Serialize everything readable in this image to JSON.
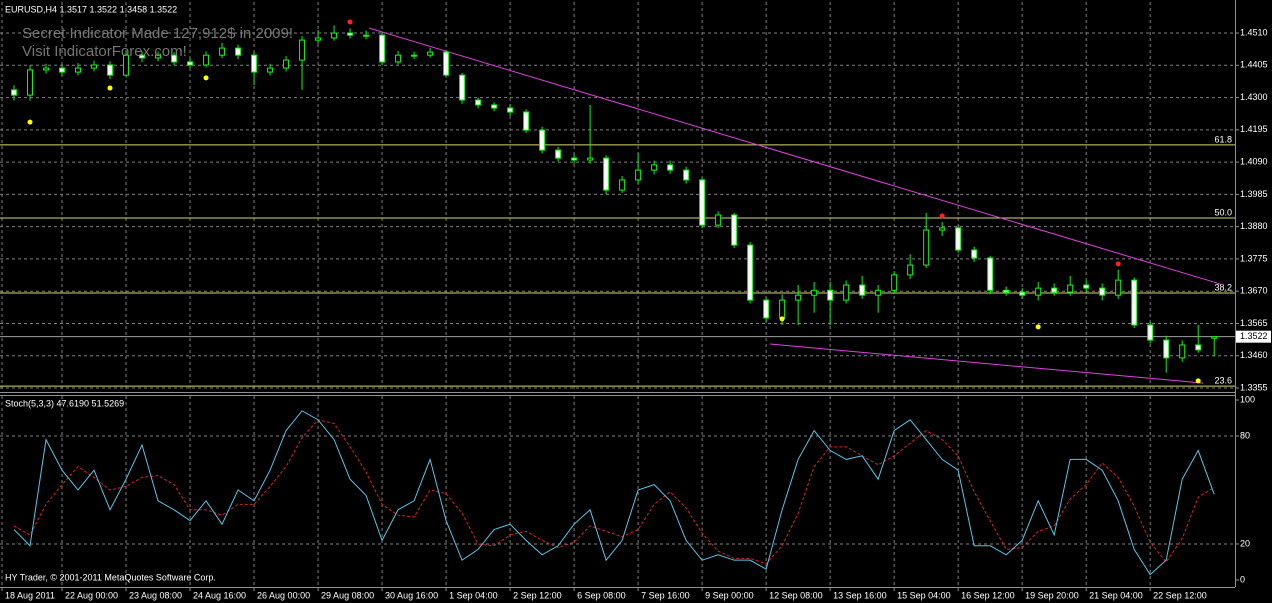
{
  "chart_data": [
    {
      "type": "candlestick",
      "title": "EURUSD,H4  1.3517 1.3522 1.3458 1.3522",
      "annotations": [
        "Secret Indicator Made 127,912$ in 2009!",
        "Visit IndicatorForex.com!"
      ],
      "candle_color": "#00ff00",
      "bull_fill": "#000000",
      "bear_fill": "#ffffff",
      "open": [
        1.4325,
        1.4308,
        1.439,
        1.4396,
        1.4383,
        1.4396,
        1.4406,
        1.4373,
        1.4438,
        1.4429,
        1.4438,
        1.4416,
        1.4406,
        1.4438,
        1.4461,
        1.4438,
        1.4383,
        1.4396,
        1.4422,
        1.4487,
        1.4494,
        1.451,
        1.4503,
        1.4503,
        1.4416,
        1.4438,
        1.4438,
        1.4448,
        1.4373,
        1.4292,
        1.4276,
        1.4266,
        1.4253,
        1.4194,
        1.4129,
        1.4103,
        1.4097,
        1.4103,
        1.3999,
        1.4032,
        1.4064,
        1.4081,
        1.4064,
        1.4032,
        1.3885,
        1.3918,
        1.382,
        1.3641,
        1.3583,
        1.3641,
        1.3657,
        1.3673,
        1.3641,
        1.369,
        1.3657,
        1.3673,
        1.3723,
        1.3755,
        1.3869,
        1.3876,
        1.3804,
        1.3778,
        1.3673,
        1.3667,
        1.3657,
        1.368,
        1.3667,
        1.369,
        1.368,
        1.3657,
        1.3706,
        1.356,
        1.3511,
        1.3453,
        1.3495,
        1.3517
      ],
      "high": [
        1.434,
        1.4405,
        1.441,
        1.4408,
        1.4412,
        1.442,
        1.4418,
        1.4452,
        1.445,
        1.445,
        1.4448,
        1.4428,
        1.445,
        1.4478,
        1.4472,
        1.4448,
        1.441,
        1.4435,
        1.45,
        1.452,
        1.4535,
        1.4525,
        1.4518,
        1.4512,
        1.4452,
        1.445,
        1.4462,
        1.4455,
        1.438,
        1.43,
        1.4285,
        1.4278,
        1.4262,
        1.4205,
        1.414,
        1.4115,
        1.4276,
        1.4112,
        1.4045,
        1.412,
        1.4095,
        1.4095,
        1.4075,
        1.404,
        1.393,
        1.3925,
        1.383,
        1.365,
        1.366,
        1.369,
        1.37,
        1.37,
        1.3705,
        1.372,
        1.369,
        1.3735,
        1.379,
        1.3925,
        1.3895,
        1.3885,
        1.3815,
        1.3785,
        1.3685,
        1.368,
        1.37,
        1.3695,
        1.372,
        1.3705,
        1.3695,
        1.374,
        1.3715,
        1.357,
        1.3525,
        1.351,
        1.356,
        1.3522
      ],
      "low": [
        1.429,
        1.429,
        1.4378,
        1.437,
        1.4372,
        1.4385,
        1.436,
        1.4365,
        1.4415,
        1.4418,
        1.4405,
        1.4395,
        1.4398,
        1.4428,
        1.4425,
        1.434,
        1.4372,
        1.4385,
        1.4325,
        1.4475,
        1.4485,
        1.4492,
        1.449,
        1.4405,
        1.4408,
        1.4425,
        1.443,
        1.4365,
        1.428,
        1.4265,
        1.4255,
        1.424,
        1.4185,
        1.4118,
        1.4092,
        1.4085,
        1.4085,
        1.3985,
        1.399,
        1.402,
        1.405,
        1.4052,
        1.402,
        1.3875,
        1.3875,
        1.381,
        1.363,
        1.357,
        1.356,
        1.356,
        1.36,
        1.356,
        1.363,
        1.3645,
        1.36,
        1.366,
        1.371,
        1.3745,
        1.385,
        1.3795,
        1.3765,
        1.366,
        1.3655,
        1.3645,
        1.364,
        1.3655,
        1.3655,
        1.3665,
        1.364,
        1.3645,
        1.355,
        1.35,
        1.3405,
        1.344,
        1.347,
        1.3458
      ],
      "close": [
        1.4308,
        1.439,
        1.4396,
        1.4383,
        1.4396,
        1.4406,
        1.4373,
        1.4438,
        1.4429,
        1.4438,
        1.4416,
        1.4406,
        1.4438,
        1.4461,
        1.4438,
        1.4383,
        1.4396,
        1.4422,
        1.4487,
        1.4494,
        1.451,
        1.4503,
        1.4503,
        1.4416,
        1.4438,
        1.4438,
        1.4448,
        1.4373,
        1.4292,
        1.4276,
        1.4266,
        1.4253,
        1.4194,
        1.4129,
        1.4103,
        1.4097,
        1.4103,
        1.3999,
        1.4032,
        1.4064,
        1.4081,
        1.4064,
        1.4032,
        1.3885,
        1.3918,
        1.382,
        1.3641,
        1.3583,
        1.3641,
        1.3657,
        1.3673,
        1.3641,
        1.369,
        1.3657,
        1.3673,
        1.3723,
        1.3755,
        1.3869,
        1.3876,
        1.3804,
        1.3778,
        1.3673,
        1.3667,
        1.3657,
        1.368,
        1.3667,
        1.369,
        1.368,
        1.3657,
        1.3706,
        1.356,
        1.3511,
        1.3453,
        1.3495,
        1.3479,
        1.3522
      ],
      "xlim": [
        -0.375,
        76.8
      ],
      "xticks": [
        {
          "value": -0.25,
          "label": "18 Aug 2011"
        },
        {
          "value": 3.5,
          "label": "22 Aug 00:00"
        },
        {
          "value": 7.5,
          "label": "23 Aug 08:00"
        },
        {
          "value": 11.5,
          "label": "24 Aug 16:00"
        },
        {
          "value": 15.5,
          "label": "26 Aug 00:00"
        },
        {
          "value": 19.5,
          "label": "29 Aug 08:00"
        },
        {
          "value": 23.5,
          "label": "30 Aug 16:00"
        },
        {
          "value": 27.5,
          "label": "1 Sep 04:00"
        },
        {
          "value": 31.5,
          "label": "2 Sep 12:00"
        },
        {
          "value": 35.5,
          "label": "6 Sep 08:00"
        },
        {
          "value": 39.5,
          "label": "7 Sep 16:00"
        },
        {
          "value": 43.5,
          "label": "9 Sep 00:00"
        },
        {
          "value": 47.5,
          "label": "12 Sep 08:00"
        },
        {
          "value": 51.5,
          "label": "13 Sep 16:00"
        },
        {
          "value": 55.5,
          "label": "15 Sep 04:00"
        },
        {
          "value": 59.5,
          "label": "16 Sep 12:00"
        },
        {
          "value": 63.5,
          "label": "19 Sep 20:00"
        },
        {
          "value": 67.5,
          "label": "21 Sep 04:00"
        },
        {
          "value": 71.5,
          "label": "22 Sep 12:00"
        }
      ],
      "ylim": [
        1.3342,
        1.4611
      ],
      "yticks": [
        {
          "value": 1.451,
          "label": "1.4510"
        },
        {
          "value": 1.4405,
          "label": "1.4405"
        },
        {
          "value": 1.43,
          "label": "1.4300"
        },
        {
          "value": 1.4195,
          "label": "1.4195"
        },
        {
          "value": 1.409,
          "label": "1.4090"
        },
        {
          "value": 1.3985,
          "label": "1.3985"
        },
        {
          "value": 1.388,
          "label": "1.3880"
        },
        {
          "value": 1.3775,
          "label": "1.3775"
        },
        {
          "value": 1.367,
          "label": "1.3670"
        },
        {
          "value": 1.3565,
          "label": "1.3565"
        },
        {
          "value": 1.346,
          "label": "1.3460"
        },
        {
          "value": 1.3355,
          "label": "1.3355"
        }
      ],
      "grid": true,
      "price_line": 1.3522,
      "fib_color": "#d8d870",
      "fib_levels": [
        {
          "label": "61.8",
          "price": 1.4146
        },
        {
          "label": "50.0",
          "price": 1.3908
        },
        {
          "label": "38.2",
          "price": 1.3664
        },
        {
          "label": "23.6",
          "price": 1.3361
        }
      ],
      "trendline_color": "#e040e0",
      "trendlines": [
        {
          "from": [
            22.2,
            1.4526
          ],
          "to": [
            75.6,
            1.369
          ]
        },
        {
          "from": [
            47.25,
            1.3498
          ],
          "to": [
            74.3,
            1.3371
          ]
        }
      ],
      "markers": [
        {
          "color": "#ffff00",
          "points": [
            [
              1,
              1.422
            ],
            [
              6,
              1.4331
            ],
            [
              12,
              1.4364
            ],
            [
              48,
              1.358
            ],
            [
              64,
              1.3554
            ],
            [
              74,
              1.3378
            ]
          ]
        },
        {
          "color": "#ff2020",
          "points": [
            [
              21,
              1.4546
            ],
            [
              58,
              1.3915
            ],
            [
              69,
              1.3759
            ]
          ]
        }
      ]
    },
    {
      "type": "line",
      "title": "Stoch(5,3,3) 47.6190 51.5269",
      "caption": "HY Trader, © 2001-2011 MetaQuotes Software Corp.",
      "series": [
        {
          "color": "#50c8e8",
          "dashed": false,
          "values": [
            28,
            19,
            78,
            61,
            50,
            61,
            39,
            56,
            75,
            44,
            39,
            33,
            44,
            31,
            50,
            44,
            61,
            83,
            94,
            89,
            78,
            56,
            47,
            22,
            39,
            44,
            67,
            33,
            11,
            17,
            28,
            31,
            22,
            14,
            19,
            31,
            39,
            11,
            22,
            50,
            53,
            44,
            22,
            11,
            14,
            11,
            11,
            6,
            39,
            67,
            83,
            72,
            67,
            69,
            56,
            83,
            89,
            78,
            67,
            61,
            19,
            19,
            14,
            22,
            44,
            25,
            67,
            67,
            61,
            44,
            17,
            3,
            11,
            56,
            72,
            47.6
          ]
        },
        {
          "color": "#e02020",
          "dashed": true,
          "values": [
            30,
            25,
            42,
            53,
            63,
            57,
            50,
            52,
            57,
            58,
            53,
            39,
            39,
            36,
            42,
            42,
            52,
            63,
            79,
            89,
            87,
            74,
            60,
            42,
            36,
            35,
            50,
            48,
            37,
            20,
            19,
            25,
            27,
            22,
            18,
            21,
            30,
            27,
            24,
            28,
            42,
            49,
            40,
            26,
            16,
            12,
            12,
            9,
            19,
            37,
            63,
            74,
            74,
            69,
            64,
            69,
            76,
            83,
            78,
            69,
            49,
            33,
            17,
            18,
            27,
            30,
            45,
            53,
            65,
            57,
            41,
            21,
            10,
            23,
            46,
            51.5
          ]
        }
      ],
      "ylim": [
        -2.8,
        102.8
      ],
      "yticks": [
        0,
        20,
        80,
        100
      ],
      "levels": [
        20,
        80
      ]
    }
  ]
}
